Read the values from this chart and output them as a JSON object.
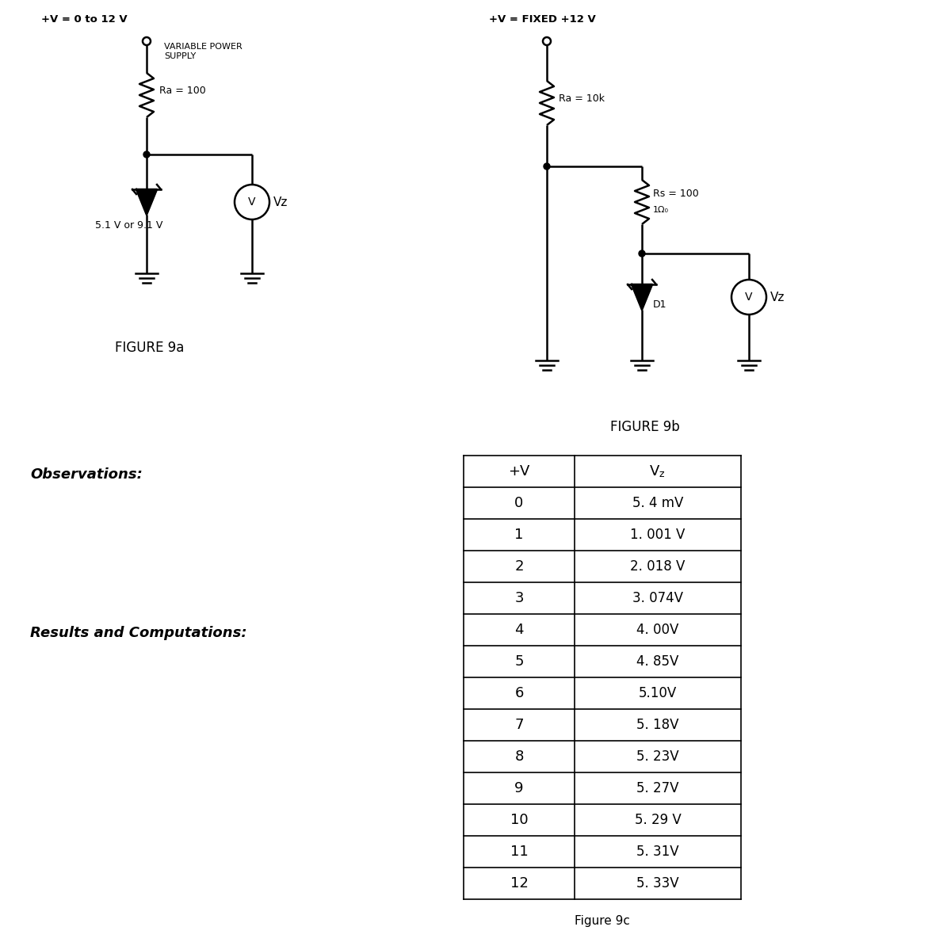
{
  "fig9a_title": "+V = 0 to 12 V",
  "fig9a_label": "FIGURE 9a",
  "fig9a_power_supply_label": "VARIABLE POWER\nSUPPLY",
  "fig9a_ra_label": "Ra = 100",
  "fig9a_zener_label": "5.1 V or 9.1 V",
  "fig9a_vz_label": "Vz",
  "fig9b_title": "+V = FIXED +12 V",
  "fig9b_label": "FIGURE 9b",
  "fig9b_ra_label": "Ra = 10k",
  "fig9b_rs_label1": "Rs = 100",
  "fig9b_rs_label2": "1Ω₀",
  "fig9b_d1_label": "D1",
  "fig9b_vz_label": "Vz",
  "observations_label": "Observations:",
  "results_label": "Results and Computations:",
  "fig9c_label": "Figure 9c",
  "table_header_v": "+V",
  "table_v": [
    0,
    1,
    2,
    3,
    4,
    5,
    6,
    7,
    8,
    9,
    10,
    11,
    12
  ],
  "table_vz": [
    "5. 4 mV",
    "1. 001 V",
    "2. 018 V",
    "3. 074V",
    "4. 00V",
    "4. 85V",
    "5.10V",
    "5. 18V",
    "5. 23V",
    "5. 27V",
    "5. 29 V",
    "5. 31V",
    "5. 33V"
  ],
  "bg_color": "#ffffff",
  "text_color": "#000000",
  "line_color": "#000000"
}
